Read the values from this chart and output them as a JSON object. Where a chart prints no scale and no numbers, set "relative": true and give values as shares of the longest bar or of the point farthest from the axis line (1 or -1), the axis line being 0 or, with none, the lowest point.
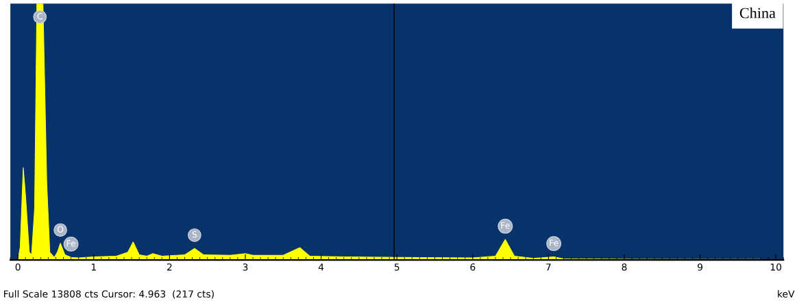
{
  "chart_data": {
    "type": "area",
    "title": "China",
    "xlabel": "keV",
    "relative": true,
    "xlim": [
      -0.1,
      10.1
    ],
    "xticks": [
      0,
      1,
      2,
      3,
      4,
      5,
      6,
      7,
      8,
      9,
      10
    ],
    "grid": false,
    "x": [
      0.0,
      0.03,
      0.07,
      0.1,
      0.15,
      0.18,
      0.22,
      0.25,
      0.33,
      0.38,
      0.42,
      0.48,
      0.52,
      0.56,
      0.62,
      0.7,
      0.8,
      1.0,
      1.3,
      1.45,
      1.52,
      1.6,
      1.7,
      1.78,
      1.9,
      2.2,
      2.33,
      2.45,
      2.8,
      3.0,
      3.1,
      3.5,
      3.72,
      3.85,
      4.3,
      5.0,
      6.0,
      6.3,
      6.43,
      6.55,
      6.8,
      7.07,
      7.2,
      8.0,
      9.0,
      9.8
    ],
    "series": [
      {
        "color": "#ffff00",
        "values": [
          0,
          0.05,
          0.36,
          0.25,
          0.03,
          0.02,
          0.2,
          1.0,
          1.0,
          0.3,
          0.03,
          0.01,
          0.03,
          0.065,
          0.02,
          0.01,
          0.008,
          0.012,
          0.015,
          0.03,
          0.07,
          0.02,
          0.015,
          0.025,
          0.015,
          0.02,
          0.045,
          0.02,
          0.018,
          0.025,
          0.018,
          0.018,
          0.048,
          0.015,
          0.012,
          0.01,
          0.008,
          0.015,
          0.08,
          0.015,
          0.006,
          0.012,
          0.004,
          0.003,
          0.002,
          0.002
        ]
      }
    ],
    "ref_lines": [
      {
        "axis": "x",
        "value": 4.963,
        "color": "#000000"
      }
    ],
    "annotations": [
      {
        "text": "C",
        "x": 0.29,
        "y": 1.0
      },
      {
        "text": "O",
        "x": 0.56,
        "y": 0.065
      },
      {
        "text": "Fe",
        "x": 0.7,
        "y": 0.01
      },
      {
        "text": "S",
        "x": 2.33,
        "y": 0.045
      },
      {
        "text": "Fe",
        "x": 6.43,
        "y": 0.08
      },
      {
        "text": "Fe",
        "x": 7.07,
        "y": 0.012
      },
      "Full Scale 13808 cts Cursor: 4.963  (217 cts)"
    ]
  }
}
